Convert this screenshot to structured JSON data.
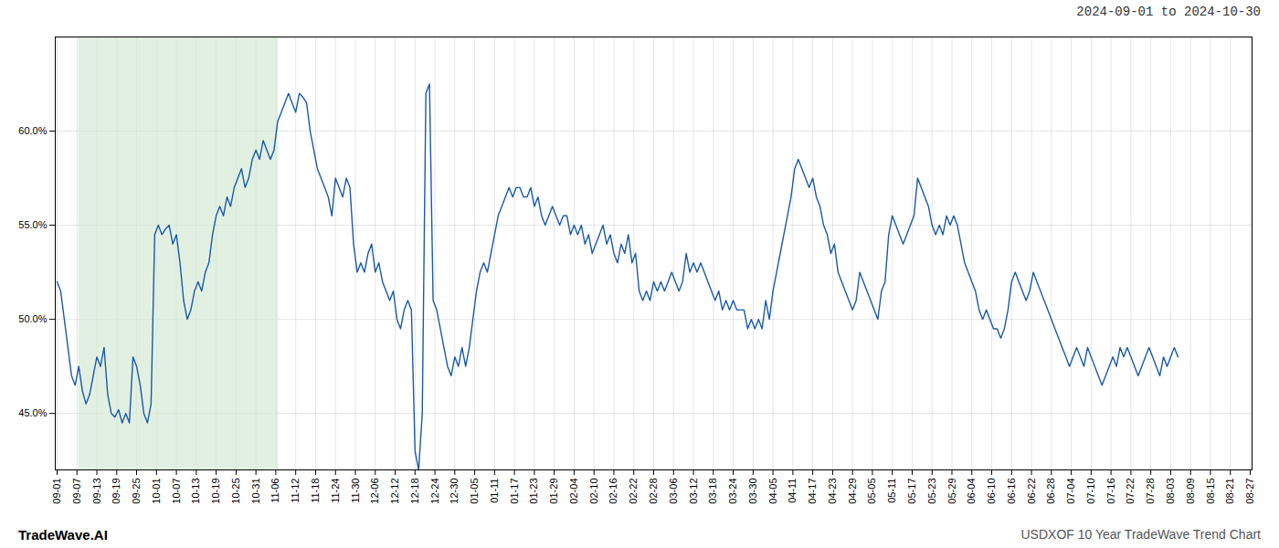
{
  "chart_data": {
    "type": "line",
    "title": "2024-09-01 to 2024-10-30",
    "annotations": [
      "TradeWave.AI",
      "USDXOF 10 Year TradeWave Trend Chart"
    ],
    "color": "#1a5aaa",
    "grid": true,
    "highlight": {
      "x": [
        5.958,
        61.235
      ],
      "color": "#d6ead6"
    },
    "xlim": [
      -0.5,
      330.5
    ],
    "xticks": [
      {
        "value": 0,
        "label": "09-01"
      },
      {
        "value": 5.5,
        "label": "09-07"
      },
      {
        "value": 11,
        "label": "09-13"
      },
      {
        "value": 16.5,
        "label": "09-19"
      },
      {
        "value": 22,
        "label": "09-25"
      },
      {
        "value": 27.5,
        "label": "10-01"
      },
      {
        "value": 33,
        "label": "10-07"
      },
      {
        "value": 38.5,
        "label": "10-13"
      },
      {
        "value": 44,
        "label": "10-19"
      },
      {
        "value": 49.5,
        "label": "10-25"
      },
      {
        "value": 55,
        "label": "10-31"
      },
      {
        "value": 60.5,
        "label": "11-06"
      },
      {
        "value": 66,
        "label": "11-12"
      },
      {
        "value": 71.5,
        "label": "11-18"
      },
      {
        "value": 77,
        "label": "11-24"
      },
      {
        "value": 82.5,
        "label": "11-30"
      },
      {
        "value": 88,
        "label": "12-06"
      },
      {
        "value": 93.5,
        "label": "12-12"
      },
      {
        "value": 99,
        "label": "12-18"
      },
      {
        "value": 104.5,
        "label": "12-24"
      },
      {
        "value": 110,
        "label": "12-30"
      },
      {
        "value": 115.5,
        "label": "01-05"
      },
      {
        "value": 121,
        "label": "01-11"
      },
      {
        "value": 126.5,
        "label": "01-17"
      },
      {
        "value": 132,
        "label": "01-23"
      },
      {
        "value": 137.5,
        "label": "01-29"
      },
      {
        "value": 143,
        "label": "02-04"
      },
      {
        "value": 148.5,
        "label": "02-10"
      },
      {
        "value": 154,
        "label": "02-16"
      },
      {
        "value": 159.5,
        "label": "02-22"
      },
      {
        "value": 165,
        "label": "02-28"
      },
      {
        "value": 170.5,
        "label": "03-06"
      },
      {
        "value": 176,
        "label": "03-12"
      },
      {
        "value": 181.5,
        "label": "03-18"
      },
      {
        "value": 187,
        "label": "03-24"
      },
      {
        "value": 192.5,
        "label": "03-30"
      },
      {
        "value": 198,
        "label": "04-05"
      },
      {
        "value": 203.5,
        "label": "04-11"
      },
      {
        "value": 209,
        "label": "04-17"
      },
      {
        "value": 214.5,
        "label": "04-23"
      },
      {
        "value": 220,
        "label": "04-29"
      },
      {
        "value": 225.5,
        "label": "05-05"
      },
      {
        "value": 231,
        "label": "05-11"
      },
      {
        "value": 236.5,
        "label": "05-17"
      },
      {
        "value": 242,
        "label": "05-23"
      },
      {
        "value": 247.5,
        "label": "05-29"
      },
      {
        "value": 253,
        "label": "06-04"
      },
      {
        "value": 258.5,
        "label": "06-10"
      },
      {
        "value": 264,
        "label": "06-16"
      },
      {
        "value": 269.5,
        "label": "06-22"
      },
      {
        "value": 275,
        "label": "06-28"
      },
      {
        "value": 280.5,
        "label": "07-04"
      },
      {
        "value": 286,
        "label": "07-10"
      },
      {
        "value": 291.5,
        "label": "07-16"
      },
      {
        "value": 297,
        "label": "07-22"
      },
      {
        "value": 302.5,
        "label": "07-28"
      },
      {
        "value": 308,
        "label": "08-03"
      },
      {
        "value": 313.5,
        "label": "08-09"
      },
      {
        "value": 319,
        "label": "08-15"
      },
      {
        "value": 324.5,
        "label": "08-21"
      },
      {
        "value": 330,
        "label": "08-27"
      }
    ],
    "ylim": [
      42.0,
      65.0
    ],
    "yticks": [
      {
        "value": 45.0,
        "label": "45.0%"
      },
      {
        "value": 50.0,
        "label": "50.0%"
      },
      {
        "value": 55.0,
        "label": "55.0%"
      },
      {
        "value": 60.0,
        "label": "60.0%"
      }
    ],
    "values": [
      52.0,
      51.5,
      50.0,
      48.5,
      47.0,
      46.5,
      47.5,
      46.2,
      45.5,
      46.0,
      47.0,
      48.0,
      47.5,
      48.5,
      46.0,
      45.0,
      44.8,
      45.2,
      44.5,
      45.0,
      44.5,
      48.0,
      47.5,
      46.5,
      45.0,
      44.5,
      45.5,
      54.5,
      55.0,
      54.5,
      54.8,
      55.0,
      54.0,
      54.5,
      53.0,
      51.0,
      50.0,
      50.5,
      51.5,
      52.0,
      51.5,
      52.5,
      53.0,
      54.5,
      55.5,
      56.0,
      55.5,
      56.5,
      56.0,
      57.0,
      57.5,
      58.0,
      57.0,
      57.5,
      58.5,
      59.0,
      58.5,
      59.5,
      59.0,
      58.5,
      59.0,
      60.5,
      61.0,
      61.5,
      62.0,
      61.5,
      61.0,
      62.0,
      61.8,
      61.5,
      60.0,
      59.0,
      58.0,
      57.5,
      57.0,
      56.5,
      55.5,
      57.5,
      57.0,
      56.5,
      57.5,
      57.0,
      54.0,
      52.5,
      53.0,
      52.5,
      53.5,
      54.0,
      52.5,
      53.0,
      52.0,
      51.5,
      51.0,
      51.5,
      50.0,
      49.5,
      50.5,
      51.0,
      50.5,
      43.0,
      42.0,
      45.0,
      62.0,
      62.5,
      51.0,
      50.5,
      49.5,
      48.5,
      47.5,
      47.0,
      48.0,
      47.5,
      48.5,
      47.5,
      48.5,
      50.0,
      51.5,
      52.5,
      53.0,
      52.5,
      53.5,
      54.5,
      55.5,
      56.0,
      56.5,
      57.0,
      56.5,
      57.0,
      57.0,
      56.5,
      56.5,
      57.0,
      56.0,
      56.5,
      55.5,
      55.0,
      55.5,
      56.0,
      55.5,
      55.0,
      55.5,
      55.5,
      54.5,
      55.0,
      54.5,
      55.0,
      54.0,
      54.5,
      53.5,
      54.0,
      54.5,
      55.0,
      54.0,
      54.5,
      53.5,
      53.0,
      54.0,
      53.5,
      54.5,
      53.0,
      53.5,
      51.5,
      51.0,
      51.5,
      51.0,
      52.0,
      51.5,
      52.0,
      51.5,
      52.0,
      52.5,
      52.0,
      51.5,
      52.0,
      53.5,
      52.5,
      53.0,
      52.5,
      53.0,
      52.5,
      52.0,
      51.5,
      51.0,
      51.5,
      50.5,
      51.0,
      50.5,
      51.0,
      50.5,
      50.5,
      50.5,
      49.5,
      50.0,
      49.5,
      50.0,
      49.5,
      51.0,
      50.0,
      51.5,
      52.5,
      53.5,
      54.5,
      55.5,
      56.5,
      58.0,
      58.5,
      58.0,
      57.5,
      57.0,
      57.5,
      56.5,
      56.0,
      55.0,
      54.5,
      53.5,
      54.0,
      52.5,
      52.0,
      51.5,
      51.0,
      50.5,
      51.0,
      52.5,
      52.0,
      51.5,
      51.0,
      50.5,
      50.0,
      51.5,
      52.0,
      54.5,
      55.5,
      55.0,
      54.5,
      54.0,
      54.5,
      55.0,
      55.5,
      57.5,
      57.0,
      56.5,
      56.0,
      55.0,
      54.5,
      55.0,
      54.5,
      55.5,
      55.0,
      55.5,
      55.0,
      54.0,
      53.0,
      52.5,
      52.0,
      51.5,
      50.5,
      50.0,
      50.5,
      50.0,
      49.5,
      49.5,
      49.0,
      49.5,
      50.5,
      52.0,
      52.5,
      52.0,
      51.5,
      51.0,
      51.5,
      52.5,
      52.0,
      51.5,
      51.0,
      50.5,
      50.0,
      49.5,
      49.0,
      48.5,
      48.0,
      47.5,
      48.0,
      48.5,
      48.0,
      47.5,
      48.5,
      48.0,
      47.5,
      47.0,
      46.5,
      47.0,
      47.5,
      48.0,
      47.5,
      48.5,
      48.0,
      48.5,
      48.0,
      47.5,
      47.0,
      47.5,
      48.0,
      48.5,
      48.0,
      47.5,
      47.0,
      48.0,
      47.5,
      48.0,
      48.5,
      48.0
    ]
  }
}
